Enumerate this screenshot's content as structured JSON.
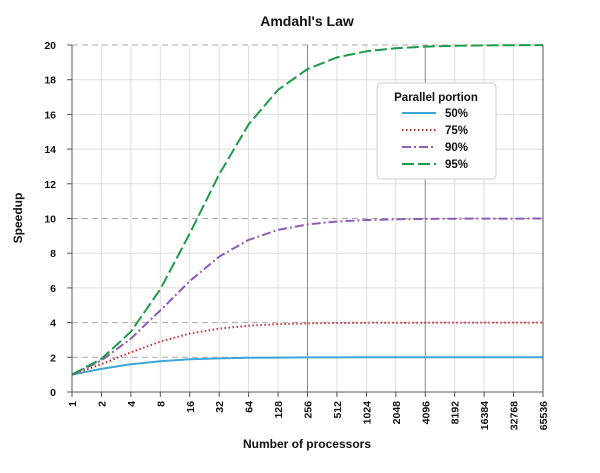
{
  "chart_data": {
    "type": "line",
    "title": "Amdahl's Law",
    "xlabel": "Number of processors",
    "ylabel": "Speedup",
    "x_scale": "log2",
    "x": [
      1,
      2,
      4,
      8,
      16,
      32,
      64,
      128,
      256,
      512,
      1024,
      2048,
      4096,
      8192,
      16384,
      32768,
      65536
    ],
    "x_tick_labels": [
      "1",
      "2",
      "4",
      "8",
      "16",
      "32",
      "64",
      "128",
      "256",
      "512",
      "1024",
      "2048",
      "4096",
      "8192",
      "16384",
      "32768",
      "65536"
    ],
    "ylim": [
      0,
      20
    ],
    "y_ticks": [
      0,
      2,
      4,
      6,
      8,
      10,
      12,
      14,
      16,
      18,
      20
    ],
    "grid": true,
    "legend": {
      "title": "Parallel portion",
      "placement": "top-right"
    },
    "series": [
      {
        "name": "50%",
        "color": "#3ea6d6",
        "style": "solid",
        "values": [
          1,
          1.333,
          1.6,
          1.778,
          1.882,
          1.939,
          1.969,
          1.984,
          1.992,
          1.996,
          1.998,
          1.999,
          2.0,
          2.0,
          2.0,
          2.0,
          2.0
        ]
      },
      {
        "name": "75%",
        "color": "#d42a2a",
        "style": "dotted",
        "values": [
          1,
          1.6,
          2.286,
          2.909,
          3.368,
          3.657,
          3.821,
          3.908,
          3.954,
          3.977,
          3.988,
          3.994,
          3.997,
          3.999,
          3.999,
          4.0,
          4.0
        ]
      },
      {
        "name": "90%",
        "color": "#8e5cb5",
        "style": "dashdot",
        "values": [
          1,
          1.818,
          3.077,
          4.706,
          6.4,
          7.805,
          8.767,
          9.343,
          9.66,
          9.827,
          9.913,
          9.956,
          9.978,
          9.989,
          9.995,
          9.997,
          9.999
        ]
      },
      {
        "name": "95%",
        "color": "#1d9a4a",
        "style": "dashed",
        "values": [
          1,
          1.905,
          3.478,
          5.926,
          9.143,
          12.549,
          15.422,
          17.415,
          18.618,
          19.284,
          19.636,
          19.816,
          19.907,
          19.954,
          19.977,
          19.988,
          19.994
        ]
      }
    ]
  }
}
